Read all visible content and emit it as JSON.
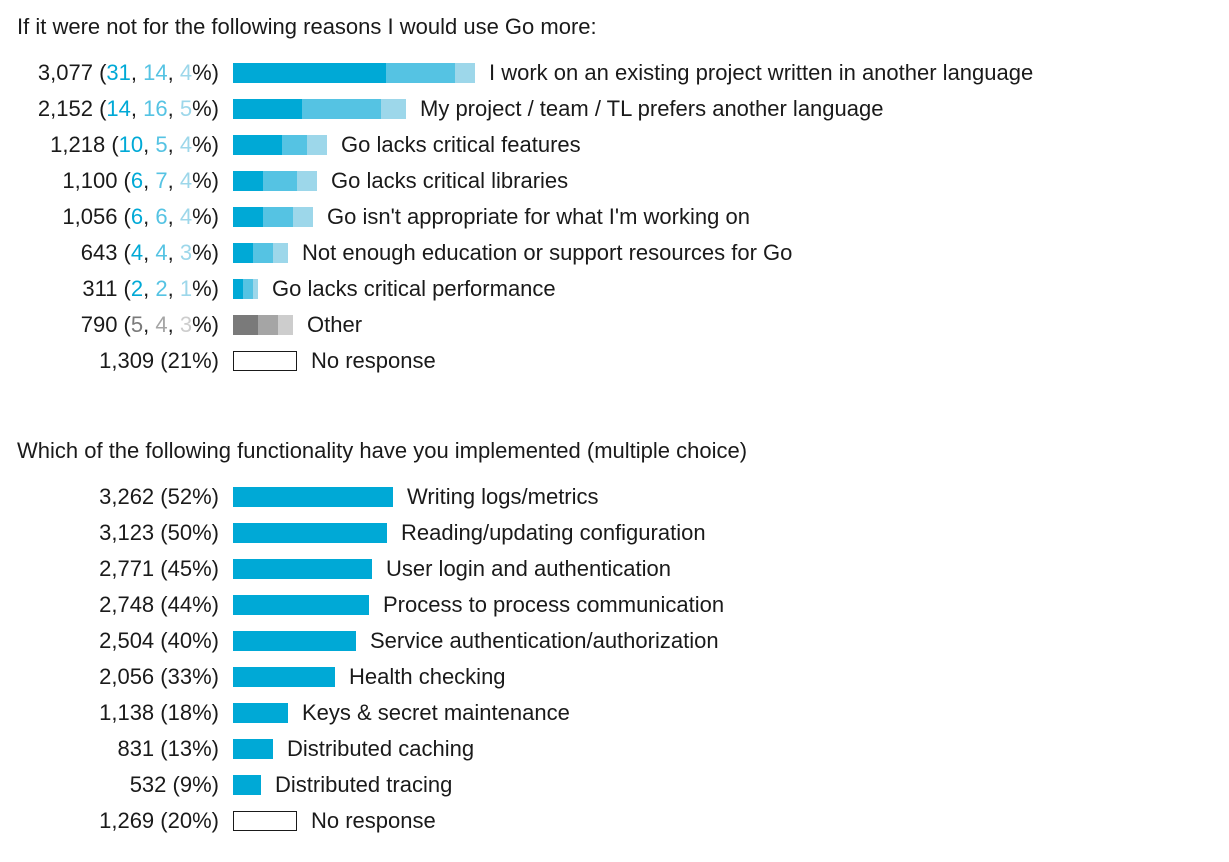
{
  "colors": {
    "text": "#1a1a1a",
    "primary": "#00a9d6",
    "secondary": "#55c3e3",
    "tertiary": "#9dd7ea",
    "other_primary": "#7a7a7a",
    "other_secondary": "#a5a5a5",
    "other_tertiary": "#cdcdcd"
  },
  "chart_data": [
    {
      "type": "bar",
      "orientation": "horizontal",
      "stacked": true,
      "title": "If it were not for the following reasons I would use Go more:",
      "rows": [
        {
          "category": "I work on an existing project written in another language",
          "count": "3,077",
          "parts": [
            "31",
            "14",
            "4"
          ],
          "style": "blue"
        },
        {
          "category": "My project / team / TL prefers another language",
          "count": "2,152",
          "parts": [
            "14",
            "16",
            "5"
          ],
          "style": "blue"
        },
        {
          "category": "Go lacks critical features",
          "count": "1,218",
          "parts": [
            "10",
            "5",
            "4"
          ],
          "style": "blue"
        },
        {
          "category": "Go lacks critical libraries",
          "count": "1,100",
          "parts": [
            "6",
            "7",
            "4"
          ],
          "style": "blue"
        },
        {
          "category": "Go isn't appropriate for what I'm working on",
          "count": "1,056",
          "parts": [
            "6",
            "6",
            "4"
          ],
          "style": "blue"
        },
        {
          "category": "Not enough education or support resources for Go",
          "count": "643",
          "parts": [
            "4",
            "4",
            "3"
          ],
          "style": "blue"
        },
        {
          "category": "Go lacks critical performance",
          "count": "311",
          "parts": [
            "2",
            "2",
            "1"
          ],
          "style": "blue"
        },
        {
          "category": "Other",
          "count": "790",
          "parts": [
            "5",
            "4",
            "3"
          ],
          "style": "gray"
        },
        {
          "category": "No response",
          "count": "1,309",
          "parts": [
            "21"
          ],
          "style": "outline"
        }
      ]
    },
    {
      "type": "bar",
      "orientation": "horizontal",
      "stacked": false,
      "title": "Which of the following functionality have you implemented (multiple choice)",
      "rows": [
        {
          "category": "Writing logs/metrics",
          "count": "3,262",
          "parts": [
            "52"
          ],
          "style": "blue"
        },
        {
          "category": "Reading/updating configuration",
          "count": "3,123",
          "parts": [
            "50"
          ],
          "style": "blue"
        },
        {
          "category": "User login and authentication",
          "count": "2,771",
          "parts": [
            "45"
          ],
          "style": "blue"
        },
        {
          "category": "Process to process communication",
          "count": "2,748",
          "parts": [
            "44"
          ],
          "style": "blue"
        },
        {
          "category": "Service authentication/authorization",
          "count": "2,504",
          "parts": [
            "40"
          ],
          "style": "blue"
        },
        {
          "category": "Health checking",
          "count": "2,056",
          "parts": [
            "33"
          ],
          "style": "blue"
        },
        {
          "category": "Keys & secret maintenance",
          "count": "1,138",
          "parts": [
            "18"
          ],
          "style": "blue"
        },
        {
          "category": "Distributed caching",
          "count": "831",
          "parts": [
            "13"
          ],
          "style": "blue"
        },
        {
          "category": "Distributed tracing",
          "count": "532",
          "parts": [
            "9"
          ],
          "style": "blue"
        },
        {
          "category": "No response",
          "count": "1,269",
          "parts": [
            "20"
          ],
          "style": "outline"
        }
      ]
    }
  ]
}
